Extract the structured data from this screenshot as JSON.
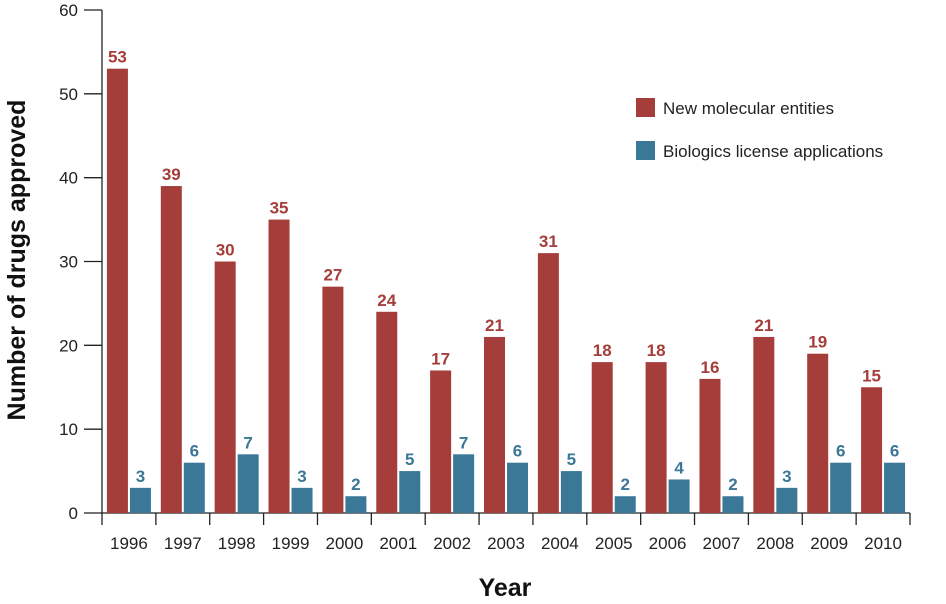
{
  "chart_data": {
    "type": "bar",
    "title": "",
    "xlabel": "Year",
    "ylabel": "Number of drugs approved",
    "ylim": [
      0,
      60
    ],
    "yticks": [
      0,
      10,
      20,
      30,
      40,
      50,
      60
    ],
    "categories": [
      "1996",
      "1997",
      "1998",
      "1999",
      "2000",
      "2001",
      "2002",
      "2003",
      "2004",
      "2005",
      "2006",
      "2007",
      "2008",
      "2009",
      "2010"
    ],
    "series": [
      {
        "name": "New molecular entities",
        "color": "#a53e3a",
        "values": [
          53,
          39,
          30,
          35,
          27,
          24,
          17,
          21,
          31,
          18,
          18,
          16,
          21,
          19,
          15
        ]
      },
      {
        "name": "Biologics license applications",
        "color": "#3b7796",
        "values": [
          3,
          6,
          7,
          3,
          2,
          5,
          7,
          6,
          5,
          2,
          4,
          2,
          3,
          6,
          6
        ]
      }
    ],
    "legend_position": "top-right",
    "data_labels": true,
    "grid": false
  }
}
